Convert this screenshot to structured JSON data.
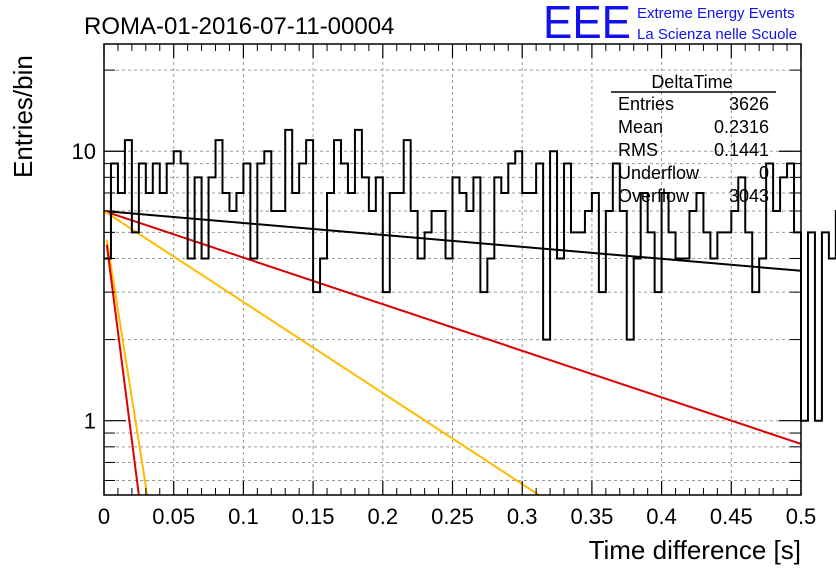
{
  "chart_data": {
    "type": "histogram",
    "title": "ROMA-01-2016-07-11-00004",
    "xlabel": "Time difference [s]",
    "ylabel": "Entries/bin",
    "xlim": [
      0,
      0.5
    ],
    "ylim": [
      0.53,
      25
    ],
    "yscale": "log",
    "grid": true,
    "x_ticks": [
      "0",
      "0.05",
      "0.1",
      "0.15",
      "0.2",
      "0.25",
      "0.3",
      "0.35",
      "0.4",
      "0.45",
      "0.5"
    ],
    "y_ticks": [
      "1",
      "10"
    ],
    "bin_width": 0.005,
    "histogram_counts": [
      4,
      9,
      7,
      11,
      5,
      9,
      7,
      9,
      7,
      9,
      10,
      9,
      4,
      8,
      4,
      8,
      11,
      7,
      6,
      7,
      9,
      4,
      9,
      10,
      6,
      6,
      12,
      7,
      9,
      11,
      3,
      4,
      7,
      11,
      9,
      7,
      12,
      8,
      6,
      8,
      3,
      7,
      7,
      11,
      6,
      4,
      5,
      6,
      6,
      4,
      8,
      7,
      6,
      8,
      3,
      4,
      8,
      7,
      9,
      10,
      7,
      7,
      9,
      2,
      10,
      4,
      9,
      5,
      5,
      6,
      7,
      3,
      6,
      9,
      6,
      2,
      4,
      7,
      5,
      3,
      7,
      5,
      4,
      4,
      6,
      7,
      5,
      4,
      5,
      5,
      6,
      8,
      5,
      3,
      4,
      9,
      6,
      8,
      9,
      5,
      1,
      5,
      1,
      5,
      4,
      6,
      9,
      6,
      3,
      5,
      6,
      3,
      5,
      6,
      4,
      4,
      3,
      4,
      8,
      6,
      7,
      4,
      4,
      9,
      8,
      4,
      4,
      6,
      4,
      5,
      8,
      1,
      5,
      5,
      4,
      6,
      4,
      4,
      6,
      7,
      6,
      4,
      4,
      4,
      3,
      6,
      5,
      5,
      4,
      5
    ],
    "fit_curves": [
      {
        "color": "#000000",
        "x": [
          0,
          0.5
        ],
        "y": [
          6.0,
          3.6
        ]
      },
      {
        "color": "#dd0000",
        "x": [
          0,
          0.5
        ],
        "y": [
          6.0,
          0.82
        ]
      },
      {
        "color": "#ffbb00",
        "x": [
          0,
          0.312
        ],
        "y": [
          6.0,
          0.53
        ]
      },
      {
        "color": "#ffbb00",
        "x": [
          0.002,
          0.031
        ],
        "y": [
          4.7,
          0.53
        ]
      },
      {
        "color": "#dd0000",
        "x": [
          0.002,
          0.025
        ],
        "y": [
          4.5,
          0.53
        ]
      }
    ],
    "stats": {
      "title": "DeltaTime",
      "rows": [
        {
          "label": "Entries",
          "value": "3626"
        },
        {
          "label": "Mean",
          "value": "0.2316"
        },
        {
          "label": "RMS",
          "value": "0.1441"
        },
        {
          "label": "Underflow",
          "value": "0"
        },
        {
          "label": "Overflow",
          "value": "3043"
        }
      ]
    },
    "logo": {
      "text": "EEE",
      "line1": "Extreme Energy Events",
      "line2": "La Scienza nelle Scuole",
      "color": "#1111ee"
    }
  }
}
